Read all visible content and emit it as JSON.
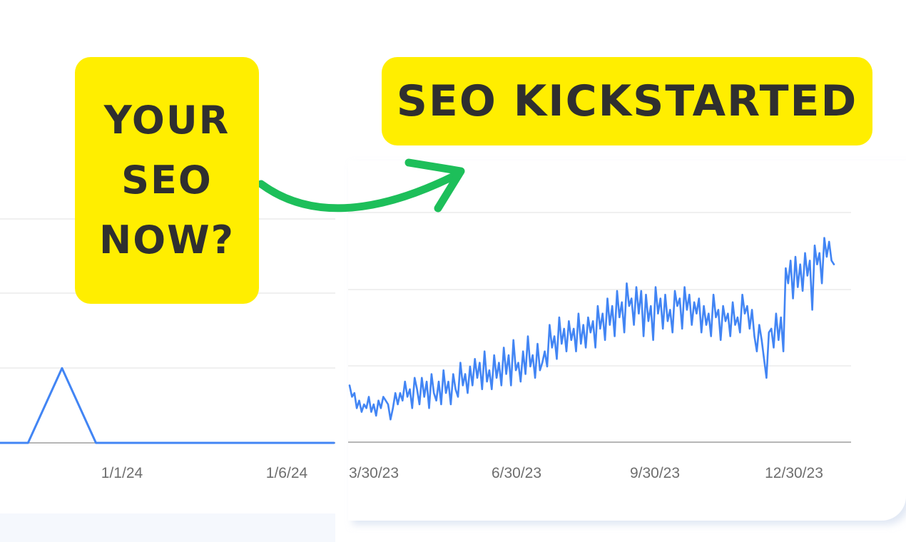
{
  "callouts": {
    "left_lines": [
      "YOUR",
      "SEO",
      "NOW?"
    ],
    "right": "SEO KICKSTARTED"
  },
  "colors": {
    "callout_bg": "#ffee00",
    "callout_text": "#2f2f2f",
    "arrow": "#1dbf5a",
    "series_line": "#4285f4",
    "gridline": "#e6e6e6",
    "baseline": "#9e9e9e",
    "tick_label": "#6e6e6e"
  },
  "chart_data": [
    {
      "type": "line",
      "title": "",
      "xlabel": "",
      "ylabel": "",
      "x_tick_labels": [
        "1/1/24",
        "1/6/24"
      ],
      "grid": true,
      "series": [
        {
          "x": [
            "12/27/23",
            "12/28/23",
            "12/29/23",
            "12/30/23",
            "12/31/23",
            "1/1/24",
            "1/2/24",
            "1/3/24",
            "1/4/24",
            "1/5/24",
            "1/6/24",
            "1/7/24"
          ],
          "values": [
            0,
            0,
            0,
            1,
            0,
            0,
            0,
            0,
            0,
            0,
            0,
            0
          ]
        }
      ],
      "ylim": [
        0,
        3
      ]
    },
    {
      "type": "line",
      "title": "",
      "xlabel": "",
      "ylabel": "",
      "x_tick_labels": [
        "3/30/23",
        "6/30/23",
        "9/30/23",
        "12/30/23"
      ],
      "grid": true,
      "series": [
        {
          "values": [
            15,
            12,
            13,
            9,
            11,
            8,
            10,
            9,
            12,
            8,
            10,
            7,
            11,
            9,
            12,
            11,
            10,
            6,
            9,
            13,
            10,
            13,
            11,
            16,
            12,
            14,
            9,
            17,
            14,
            10,
            17,
            12,
            16,
            9,
            18,
            13,
            11,
            16,
            10,
            19,
            13,
            16,
            10,
            18,
            14,
            12,
            21,
            15,
            18,
            13,
            20,
            15,
            22,
            17,
            21,
            14,
            24,
            16,
            19,
            14,
            23,
            17,
            21,
            15,
            25,
            18,
            23,
            15,
            27,
            19,
            21,
            16,
            24,
            18,
            28,
            20,
            23,
            17,
            26,
            19,
            21,
            24,
            20,
            31,
            25,
            28,
            22,
            33,
            26,
            30,
            24,
            32,
            27,
            30,
            24,
            34,
            26,
            31,
            25,
            33,
            29,
            32,
            25,
            36,
            30,
            34,
            27,
            38,
            31,
            36,
            28,
            40,
            33,
            37,
            29,
            42,
            36,
            38,
            31,
            41,
            34,
            40,
            28,
            39,
            32,
            36,
            27,
            41,
            34,
            38,
            30,
            39,
            32,
            35,
            29,
            40,
            36,
            38,
            30,
            41,
            35,
            39,
            31,
            37,
            34,
            38,
            29,
            36,
            31,
            34,
            28,
            39,
            33,
            35,
            27,
            36,
            32,
            34,
            28,
            37,
            31,
            33,
            29,
            39,
            34,
            36,
            30,
            35,
            28,
            24,
            31,
            27,
            22,
            17,
            29,
            30,
            25,
            34,
            27,
            33,
            24,
            46,
            42,
            48,
            38,
            49,
            41,
            47,
            40,
            50,
            44,
            48,
            35,
            52,
            47,
            50,
            42,
            54,
            49,
            53,
            48,
            47
          ]
        }
      ],
      "ylim": [
        0,
        56
      ]
    }
  ]
}
